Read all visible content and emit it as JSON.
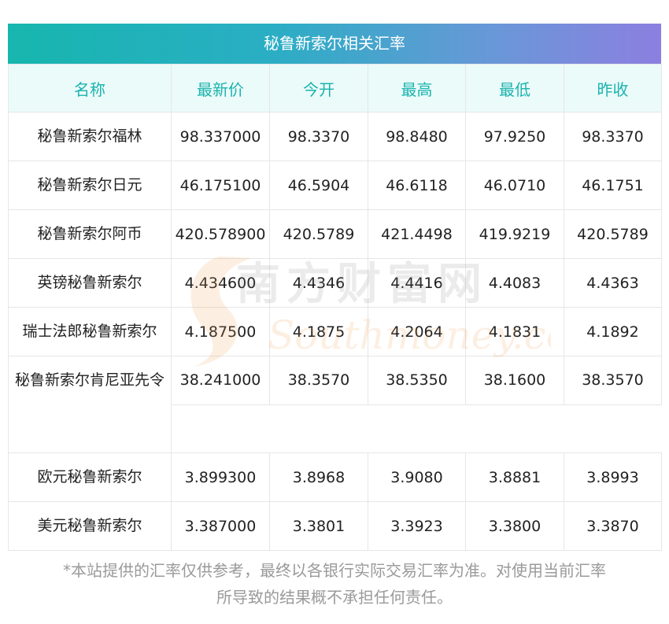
{
  "title": "秘鲁新索尔相关汇率",
  "headers": [
    "名称",
    "最新价",
    "今开",
    "最高",
    "最低",
    "昨收"
  ],
  "rows": [
    {
      "name": "秘鲁新索尔福林",
      "latest": "98.337000",
      "open": "98.3370",
      "high": "98.8480",
      "low": "97.9250",
      "prev": "98.3370"
    },
    {
      "name": "秘鲁新索尔日元",
      "latest": "46.175100",
      "open": "46.5904",
      "high": "46.6118",
      "low": "46.0710",
      "prev": "46.1751"
    },
    {
      "name": "秘鲁新索尔阿币",
      "latest": "420.578900",
      "open": "420.5789",
      "high": "421.4498",
      "low": "419.9219",
      "prev": "420.5789"
    },
    {
      "name": "英镑秘鲁新索尔",
      "latest": "4.434600",
      "open": "4.4346",
      "high": "4.4416",
      "low": "4.4083",
      "prev": "4.4363"
    },
    {
      "name": "瑞士法郎秘鲁新索尔",
      "latest": "4.187500",
      "open": "4.1875",
      "high": "4.2064",
      "low": "4.1831",
      "prev": "4.1892"
    },
    {
      "name": "秘鲁新索尔肯尼亚先令",
      "latest": "38.241000",
      "open": "38.3570",
      "high": "38.5350",
      "low": "38.1600",
      "prev": "38.3570"
    },
    {
      "name": "欧元秘鲁新索尔",
      "latest": "3.899300",
      "open": "3.8968",
      "high": "3.9080",
      "low": "3.8881",
      "prev": "3.8993"
    },
    {
      "name": "美元秘鲁新索尔",
      "latest": "3.387000",
      "open": "3.3801",
      "high": "3.3923",
      "low": "3.3800",
      "prev": "3.3870"
    }
  ],
  "watermark": {
    "cn": "南方财富网",
    "en": "Southmoney.com"
  },
  "disclaimer_line1": "*本站提供的汇率仅供参考，最终以各银行实际交易汇率为准。对使用当前汇率",
  "disclaimer_line2": "所导致的结果概不承担任何责任。",
  "colors": {
    "header_text": "#1bb3ad",
    "header_bg": "#ebfbfa",
    "title_start": "#17b6ae",
    "title_end": "#8c7fe0"
  }
}
